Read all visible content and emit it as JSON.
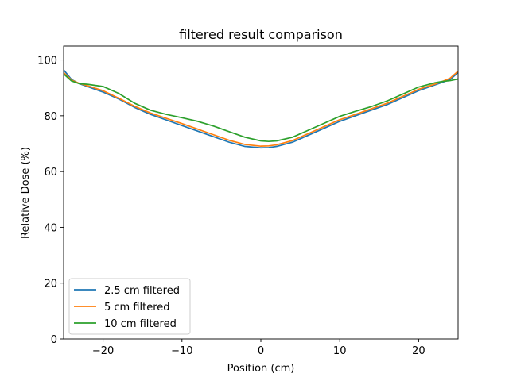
{
  "chart_data": {
    "type": "line",
    "title": "filtered result comparison",
    "xlabel": "Position (cm)",
    "ylabel": "Relative Dose (%)",
    "xlim": [
      -25,
      25
    ],
    "ylim": [
      0,
      105
    ],
    "xticks": [
      -20,
      -10,
      0,
      10,
      20
    ],
    "yticks": [
      0,
      20,
      40,
      60,
      80,
      100
    ],
    "grid": false,
    "legend_position": "lower-left",
    "x": [
      -25,
      -24,
      -23,
      -22,
      -20,
      -18,
      -16,
      -14,
      -12,
      -10,
      -8,
      -6,
      -4,
      -2,
      0,
      1,
      2,
      4,
      6,
      8,
      10,
      12,
      14,
      16,
      18,
      20,
      22,
      23,
      24,
      25
    ],
    "series": [
      {
        "name": "2.5 cm filtered",
        "color": "#1f77b4",
        "values": [
          96.5,
          93.0,
          91.5,
          90.5,
          88.5,
          86.0,
          83.0,
          80.5,
          78.5,
          76.5,
          74.5,
          72.5,
          70.5,
          69.0,
          68.5,
          68.6,
          69.0,
          70.5,
          73.0,
          75.5,
          78.0,
          80.0,
          82.0,
          84.0,
          86.5,
          89.0,
          91.0,
          92.0,
          93.0,
          95.5
        ]
      },
      {
        "name": "5 cm filtered",
        "color": "#ff7f0e",
        "values": [
          95.5,
          92.8,
          91.6,
          90.8,
          89.0,
          86.3,
          83.4,
          81.0,
          79.1,
          77.2,
          75.2,
          73.2,
          71.2,
          69.7,
          69.1,
          69.2,
          69.6,
          71.1,
          73.6,
          76.1,
          78.6,
          80.5,
          82.5,
          84.5,
          87.0,
          89.5,
          91.3,
          92.3,
          93.5,
          96.0
        ]
      },
      {
        "name": "10 cm filtered",
        "color": "#2ca02c",
        "values": [
          95.0,
          92.5,
          91.5,
          91.3,
          90.5,
          88.0,
          84.5,
          82.0,
          80.5,
          79.3,
          78.0,
          76.3,
          74.3,
          72.3,
          71.0,
          70.8,
          71.0,
          72.3,
          74.8,
          77.3,
          79.8,
          81.6,
          83.3,
          85.3,
          87.8,
          90.3,
          91.8,
          92.3,
          92.6,
          93.2
        ]
      }
    ]
  }
}
